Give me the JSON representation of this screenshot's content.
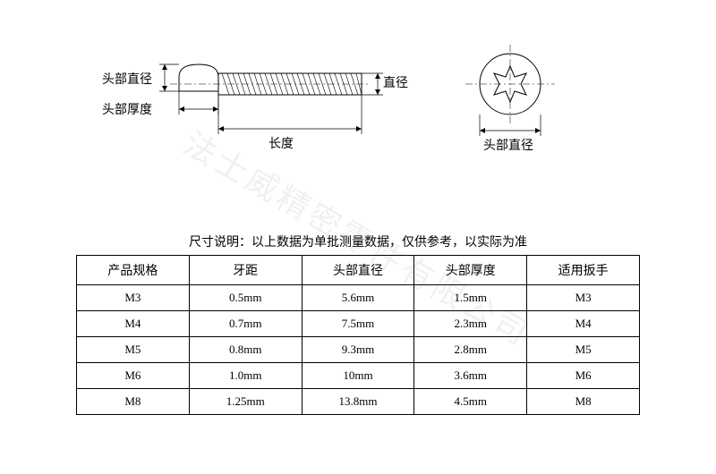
{
  "watermark": "法士威精密零件有限公司",
  "diagram": {
    "labels": {
      "head_diameter": "头部直径",
      "head_thickness": "头部厚度",
      "length": "长度",
      "diameter": "直径"
    },
    "colors": {
      "stroke": "#000000",
      "fill": "#ffffff"
    }
  },
  "caption": {
    "prefix": "尺寸说明：",
    "text": "以上数据为单批测量数据，仅供参考，以实际为准"
  },
  "table": {
    "columns": [
      "产品规格",
      "牙距",
      "头部直径",
      "头部厚度",
      "适用扳手"
    ],
    "rows": [
      [
        "M3",
        "0.5mm",
        "5.6mm",
        "1.5mm",
        "M3"
      ],
      [
        "M4",
        "0.7mm",
        "7.5mm",
        "2.3mm",
        "M4"
      ],
      [
        "M5",
        "0.8mm",
        "9.3mm",
        "2.8mm",
        "M5"
      ],
      [
        "M6",
        "1.0mm",
        "10mm",
        "3.6mm",
        "M6"
      ],
      [
        "M8",
        "1.25mm",
        "13.8mm",
        "4.5mm",
        "M8"
      ]
    ],
    "column_widths": [
      "20%",
      "20%",
      "20%",
      "20%",
      "20%"
    ]
  }
}
